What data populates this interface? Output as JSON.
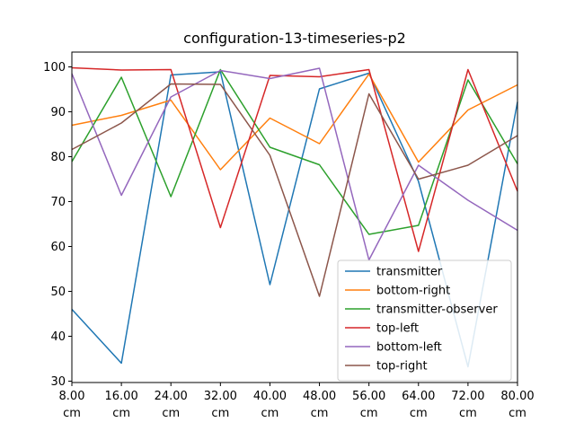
{
  "chart_data": {
    "type": "line",
    "title": "configuration-13-timeseries-p2",
    "xlabel": "",
    "ylabel": "",
    "x": [
      8,
      16,
      24,
      32,
      40,
      48,
      56,
      64,
      72,
      80
    ],
    "x_tick_labels": [
      [
        "8.00",
        "cm"
      ],
      [
        "16.00",
        "cm"
      ],
      [
        "24.00",
        "cm"
      ],
      [
        "32.00",
        "cm"
      ],
      [
        "40.00",
        "cm"
      ],
      [
        "48.00",
        "cm"
      ],
      [
        "56.00",
        "cm"
      ],
      [
        "64.00",
        "cm"
      ],
      [
        "72.00",
        "cm"
      ],
      [
        "80.00",
        "cm"
      ]
    ],
    "y_ticks": [
      30,
      40,
      50,
      60,
      70,
      80,
      90,
      100
    ],
    "y_tick_labels": [
      "30",
      "40",
      "50",
      "60",
      "70",
      "80",
      "90",
      "100"
    ],
    "xlim": [
      8,
      80
    ],
    "ylim": [
      29.7,
      103.3
    ],
    "grid": false,
    "legend_position": "lower-right",
    "series": [
      {
        "name": "transmitter",
        "color": "#1f77b4",
        "values": [
          46.0,
          34.0,
          98.2,
          98.9,
          51.5,
          95.1,
          98.6,
          74.5,
          33.2,
          92.2
        ]
      },
      {
        "name": "bottom-right",
        "color": "#ff7f0e",
        "values": [
          87.0,
          89.2,
          92.6,
          77.1,
          88.6,
          82.9,
          98.4,
          78.8,
          90.4,
          96.0
        ]
      },
      {
        "name": "transmitter-observer",
        "color": "#2ca02c",
        "values": [
          78.9,
          97.7,
          71.1,
          99.4,
          82.1,
          78.2,
          62.7,
          64.7,
          97.1,
          78.4
        ]
      },
      {
        "name": "top-left",
        "color": "#d62728",
        "values": [
          99.8,
          99.3,
          99.4,
          64.2,
          98.1,
          97.8,
          99.4,
          58.9,
          99.4,
          72.3
        ]
      },
      {
        "name": "bottom-left",
        "color": "#9467bd",
        "values": [
          98.5,
          71.4,
          93.3,
          99.2,
          97.4,
          99.7,
          57.0,
          78.1,
          70.3,
          63.6
        ]
      },
      {
        "name": "top-right",
        "color": "#8c564b",
        "values": [
          81.6,
          87.5,
          96.2,
          96.1,
          80.3,
          48.9,
          94.0,
          75.0,
          78.1,
          84.7
        ]
      }
    ]
  }
}
